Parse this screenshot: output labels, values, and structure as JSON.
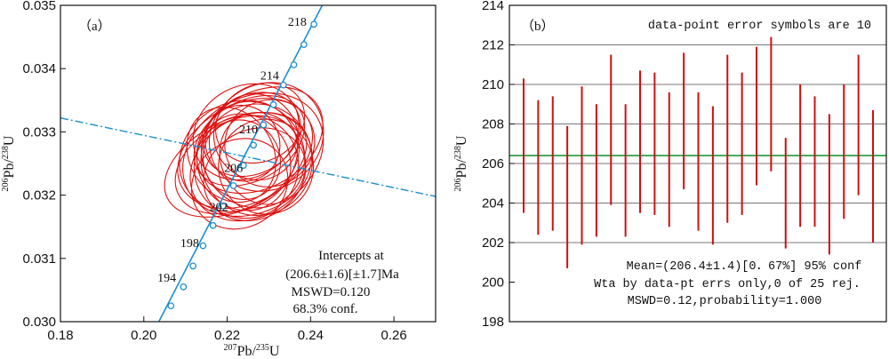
{
  "chart_data": [
    {
      "type": "scatter",
      "panel_label": "（a）",
      "xlabel": {
        "sup": "207",
        "main": "Pb/",
        "sup2": "235",
        "tail": "U"
      },
      "ylabel": {
        "sup": "206",
        "main": "Pb/",
        "sup2": "238",
        "tail": "U"
      },
      "xlim": [
        0.18,
        0.27
      ],
      "ylim": [
        0.03,
        0.035
      ],
      "x_ticks": [
        "0.18",
        "0.20",
        "0.22",
        "0.24",
        "0.26"
      ],
      "x_tick_values": [
        0.18,
        0.2,
        0.22,
        0.24,
        0.26
      ],
      "y_ticks": [
        "0.030",
        "0.031",
        "0.032",
        "0.033",
        "0.034",
        "0.035"
      ],
      "y_tick_values": [
        0.03,
        0.031,
        0.032,
        0.033,
        0.034,
        0.035
      ],
      "concordia": {
        "color": "#1a8fd0",
        "points": [
          {
            "x": 0.2065,
            "y": 0.03025
          },
          {
            "x": 0.2095,
            "y": 0.03055
          },
          {
            "x": 0.2118,
            "y": 0.03088
          },
          {
            "x": 0.2142,
            "y": 0.0312
          },
          {
            "x": 0.2166,
            "y": 0.03152
          },
          {
            "x": 0.219,
            "y": 0.03183
          },
          {
            "x": 0.2215,
            "y": 0.03215
          },
          {
            "x": 0.2239,
            "y": 0.03247
          },
          {
            "x": 0.2263,
            "y": 0.03279
          },
          {
            "x": 0.2287,
            "y": 0.03311
          },
          {
            "x": 0.2311,
            "y": 0.03343
          },
          {
            "x": 0.2335,
            "y": 0.03374
          },
          {
            "x": 0.236,
            "y": 0.03406
          },
          {
            "x": 0.2384,
            "y": 0.03438
          },
          {
            "x": 0.2408,
            "y": 0.0347
          }
        ],
        "line_start": {
          "x": 0.2036,
          "y": 0.03
        },
        "line_end": {
          "x": 0.2428,
          "y": 0.035
        },
        "age_labels": [
          {
            "text": "194",
            "x": 0.2055,
            "y": 0.03063
          },
          {
            "text": "198",
            "x": 0.211,
            "y": 0.03118
          },
          {
            "text": "202",
            "x": 0.218,
            "y": 0.03175
          },
          {
            "text": "206",
            "x": 0.2215,
            "y": 0.03237
          },
          {
            "text": "210",
            "x": 0.2251,
            "y": 0.03298
          },
          {
            "text": "214",
            "x": 0.2302,
            "y": 0.03383
          },
          {
            "text": "218",
            "x": 0.2368,
            "y": 0.03468
          }
        ]
      },
      "discordia": {
        "color": "#1a8fd0",
        "start": {
          "x": 0.18,
          "y": 0.03322
        },
        "end": {
          "x": 0.27,
          "y": 0.03198
        }
      },
      "ellipses_color": "#dd1111",
      "ellipses": [
        {
          "cx": 0.2243,
          "cy": 0.03266,
          "rx": 0.0172,
          "ry": 0.00078,
          "angle": 28
        },
        {
          "cx": 0.2262,
          "cy": 0.03264,
          "rx": 0.0178,
          "ry": 0.0009,
          "angle": 30
        },
        {
          "cx": 0.2224,
          "cy": 0.03248,
          "rx": 0.0158,
          "ry": 0.00069,
          "angle": 27
        },
        {
          "cx": 0.2278,
          "cy": 0.03287,
          "rx": 0.0162,
          "ry": 0.00075,
          "angle": 30
        },
        {
          "cx": 0.2253,
          "cy": 0.03286,
          "rx": 0.0142,
          "ry": 0.00063,
          "angle": 29
        },
        {
          "cx": 0.222,
          "cy": 0.03248,
          "rx": 0.0182,
          "ry": 0.00071,
          "angle": 26
        },
        {
          "cx": 0.2294,
          "cy": 0.03292,
          "rx": 0.0141,
          "ry": 0.00083,
          "angle": 32
        },
        {
          "cx": 0.2262,
          "cy": 0.03264,
          "rx": 0.0121,
          "ry": 0.00086,
          "angle": 34
        },
        {
          "cx": 0.224,
          "cy": 0.03252,
          "rx": 0.011,
          "ry": 0.00078,
          "angle": 33
        },
        {
          "cx": 0.2269,
          "cy": 0.03292,
          "rx": 0.01,
          "ry": 0.00069,
          "angle": 31
        },
        {
          "cx": 0.2235,
          "cy": 0.03256,
          "rx": 0.0091,
          "ry": 0.00064,
          "angle": 32
        },
        {
          "cx": 0.2271,
          "cy": 0.03256,
          "rx": 0.0134,
          "ry": 0.00088,
          "angle": 35
        },
        {
          "cx": 0.2246,
          "cy": 0.03245,
          "rx": 0.0126,
          "ry": 0.00081,
          "angle": 31
        },
        {
          "cx": 0.2285,
          "cy": 0.03258,
          "rx": 0.0099,
          "ry": 0.00075,
          "angle": 30
        },
        {
          "cx": 0.2227,
          "cy": 0.03262,
          "rx": 0.0147,
          "ry": 0.00084,
          "angle": 33
        },
        {
          "cx": 0.2259,
          "cy": 0.03296,
          "rx": 0.0122,
          "ry": 0.00062,
          "angle": 28
        },
        {
          "cx": 0.2293,
          "cy": 0.03245,
          "rx": 0.0114,
          "ry": 0.00075,
          "angle": 27
        },
        {
          "cx": 0.223,
          "cy": 0.03218,
          "rx": 0.0119,
          "ry": 0.00069,
          "angle": 31
        },
        {
          "cx": 0.2279,
          "cy": 0.03314,
          "rx": 0.0111,
          "ry": 0.0006,
          "angle": 29
        },
        {
          "cx": 0.221,
          "cy": 0.03264,
          "rx": 0.01,
          "ry": 0.00079,
          "angle": 34
        },
        {
          "cx": 0.2302,
          "cy": 0.03282,
          "rx": 0.0109,
          "ry": 0.00068,
          "angle": 28
        },
        {
          "cx": 0.2245,
          "cy": 0.033,
          "rx": 0.0132,
          "ry": 0.00072,
          "angle": 30
        },
        {
          "cx": 0.2266,
          "cy": 0.03233,
          "rx": 0.0127,
          "ry": 0.0007,
          "angle": 29
        },
        {
          "cx": 0.2237,
          "cy": 0.03282,
          "rx": 0.0088,
          "ry": 0.00061,
          "angle": 35
        },
        {
          "cx": 0.2257,
          "cy": 0.03245,
          "rx": 0.0153,
          "ry": 0.0008,
          "angle": 30
        }
      ],
      "annotation": [
        "Intercepts at",
        "(206.6±1.6)[±1.7]Ma",
        "MSWD=0.120",
        "68.3% conf."
      ]
    },
    {
      "type": "bar",
      "panel_label": "（b）",
      "header_note": "data-point error symbols are 10",
      "ylabel": {
        "sup": "206",
        "main": "Pb/",
        "sup2": "238",
        "tail": "U"
      },
      "ylim": [
        198,
        214
      ],
      "y_ticks": [
        "198",
        "200",
        "202",
        "204",
        "206",
        "208",
        "210",
        "212",
        "214"
      ],
      "y_tick_values": [
        198,
        200,
        202,
        204,
        206,
        208,
        210,
        212,
        214
      ],
      "gridlines": [
        202,
        204,
        206,
        208,
        210,
        212
      ],
      "mean": 206.4,
      "mean_color": "#1a9a3a",
      "bar_color": "#cc1111",
      "error_bars": [
        {
          "low": 203.5,
          "high": 210.3
        },
        {
          "low": 202.4,
          "high": 209.2
        },
        {
          "low": 202.6,
          "high": 209.4
        },
        {
          "low": 200.7,
          "high": 207.9
        },
        {
          "low": 201.9,
          "high": 209.9
        },
        {
          "low": 202.3,
          "high": 209.0
        },
        {
          "low": 203.9,
          "high": 211.5
        },
        {
          "low": 202.3,
          "high": 209.0
        },
        {
          "low": 203.5,
          "high": 210.7
        },
        {
          "low": 203.4,
          "high": 210.6
        },
        {
          "low": 202.8,
          "high": 209.6
        },
        {
          "low": 204.7,
          "high": 211.6
        },
        {
          "low": 202.6,
          "high": 209.6
        },
        {
          "low": 201.9,
          "high": 208.9
        },
        {
          "low": 203.0,
          "high": 211.5
        },
        {
          "low": 203.4,
          "high": 210.6
        },
        {
          "low": 204.9,
          "high": 211.9
        },
        {
          "low": 205.6,
          "high": 212.4
        },
        {
          "low": 201.7,
          "high": 207.3
        },
        {
          "low": 202.8,
          "high": 210.0
        },
        {
          "low": 202.8,
          "high": 209.4
        },
        {
          "low": 201.4,
          "high": 208.5
        },
        {
          "low": 203.2,
          "high": 210.0
        },
        {
          "low": 204.4,
          "high": 211.5
        },
        {
          "low": 202.0,
          "high": 208.7
        }
      ],
      "annotation": [
        "Mean=(206.4±1.4)[0．67%] 95% conf",
        "Wta by data-pt errs only,0 of 25 rej.",
        "MSWD=0.12,probability=1.000"
      ]
    }
  ]
}
